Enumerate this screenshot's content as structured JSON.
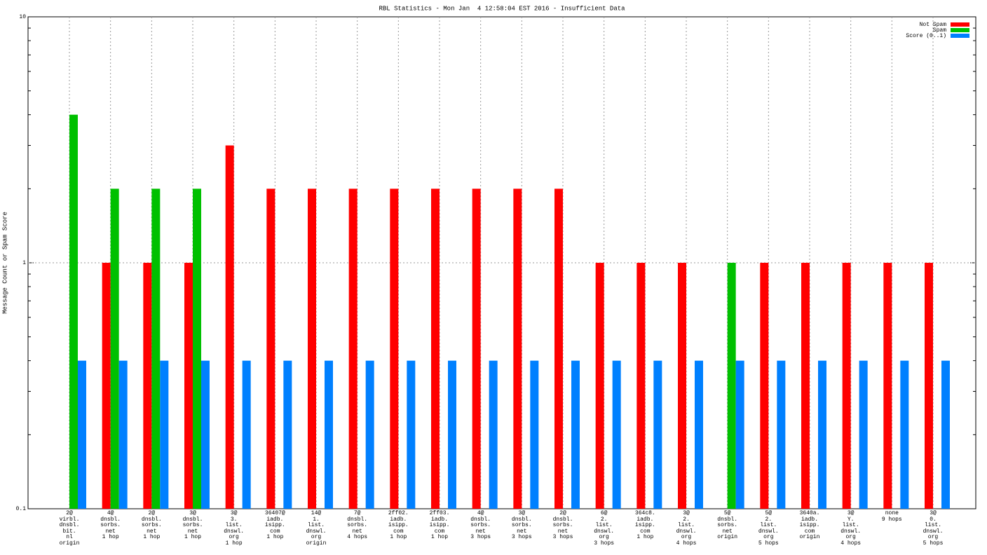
{
  "chart_data": {
    "type": "bar",
    "title": "RBL Statistics - Mon Jan  4 12:58:04 EST 2016 - Insufficient Data",
    "y_label": "Message Count or Spam Score",
    "categories": [
      "2@\nvirbl.\ndnsbl.\nbit.\nnl\norigin",
      "4@\ndnsbl.\nsorbs.\nnet\n1 hop",
      "2@\ndnsbl.\nsorbs.\nnet\n1 hop",
      "3@\ndnsbl.\nsorbs.\nnet\n1 hop",
      "3@\n3.\nlist.\ndnswl.\norg\n1 hop",
      "36407@\niadb.\nisipp.\ncom\n1 hop",
      "14@\n1.\nlist.\ndnswl.\norg\norigin",
      "7@\ndnsbl.\nsorbs.\nnet\n4 hops",
      "2ff02.\niadb.\nisipp.\ncom\n1 hop",
      "2ff03.\niadb.\nisipp.\ncom\n1 hop",
      "4@\ndnsbl.\nsorbs.\nnet\n3 hops",
      "3@\ndnsbl.\nsorbs.\nnet\n3 hops",
      "2@\ndnsbl.\nsorbs.\nnet\n3 hops",
      "6@\n2.\nlist.\ndnswl.\norg\n3 hops",
      "364c8.\niadb.\nisipp.\ncom\n1 hop",
      "3@\n2.\nlist.\ndnswl.\norg\n4 hops",
      "5@\ndnsbl.\nsorbs.\nnet\norigin",
      "5@\n2.\nlist.\ndnswl.\norg\n5 hops",
      "3640a.\niadb.\nisipp.\ncom\norigin",
      "3@\nY.\nlist.\ndnswl.\norg\n4 hops",
      "none\n9 hops",
      "3@\n0.\nlist.\ndnswl.\norg\n5 hops"
    ],
    "series": [
      {
        "name": "Not Spam",
        "color": "#ff0000",
        "values": [
          null,
          1,
          1,
          1,
          3,
          2,
          2,
          2,
          2,
          2,
          2,
          2,
          2,
          1,
          1,
          1,
          null,
          1,
          1,
          1,
          1,
          1
        ]
      },
      {
        "name": "Spam",
        "color": "#00c000",
        "values": [
          4,
          2,
          2,
          2,
          null,
          null,
          null,
          null,
          null,
          null,
          null,
          null,
          null,
          null,
          null,
          null,
          1,
          null,
          null,
          null,
          null,
          null
        ]
      },
      {
        "name": "Score (0..1)",
        "color": "#0080ff",
        "values": [
          0.4,
          0.4,
          0.4,
          0.4,
          0.4,
          0.4,
          0.4,
          0.4,
          0.4,
          0.4,
          0.4,
          0.4,
          0.4,
          0.4,
          0.4,
          0.4,
          0.4,
          0.4,
          0.4,
          0.4,
          0.4,
          0.4
        ]
      }
    ],
    "ylim": [
      0.1,
      10
    ],
    "yticks": [
      0.1,
      1,
      10
    ],
    "yminorticks": [
      0.2,
      0.3,
      0.4,
      0.5,
      0.6,
      0.7,
      0.8,
      0.9,
      2,
      3,
      4,
      5,
      6,
      7,
      8,
      9
    ],
    "log_y": true,
    "grid": true,
    "legend": "top-right"
  }
}
